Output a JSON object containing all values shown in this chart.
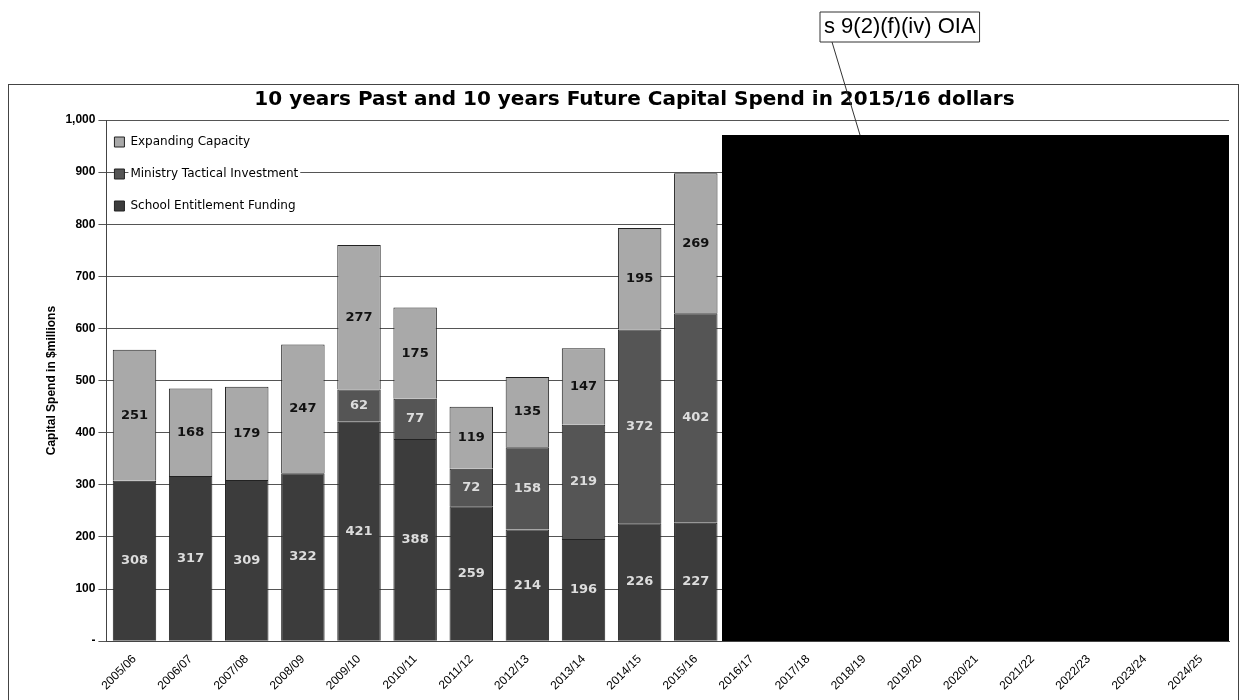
{
  "chart_data": {
    "type": "bar",
    "title": "10 years Past and 10 years Future Capital Spend in 2015/16 dollars",
    "ylabel": "Capital Spend in $millions",
    "categories": [
      "2005/06",
      "2006/07",
      "2007/08",
      "2008/09",
      "2009/10",
      "2010/11",
      "2011/12",
      "2012/13",
      "2013/14",
      "2014/15",
      "2015/16",
      "2016/17",
      "2017/18",
      "2018/19",
      "2019/20",
      "2020/21",
      "2021/22",
      "2022/23",
      "2023/24",
      "2024/25"
    ],
    "stacked": true,
    "series": [
      {
        "name": "School Entitlement Funding",
        "color": "#3c3c3c",
        "values": [
          308,
          317,
          309,
          322,
          421,
          388,
          259,
          214,
          196,
          226,
          227,
          null,
          null,
          null,
          null,
          null,
          null,
          null,
          null,
          null
        ]
      },
      {
        "name": "Ministry Tactical Investment",
        "color": "#555555",
        "values": [
          null,
          null,
          null,
          null,
          62,
          77,
          72,
          158,
          219,
          372,
          402,
          null,
          null,
          null,
          null,
          null,
          null,
          null,
          null,
          null
        ]
      },
      {
        "name": "Expanding Capacity",
        "color": "#a9a9a9",
        "values": [
          251,
          168,
          179,
          247,
          277,
          175,
          119,
          135,
          147,
          195,
          269,
          null,
          null,
          null,
          null,
          null,
          null,
          null,
          null,
          null
        ]
      }
    ],
    "ylim": [
      0,
      1000
    ],
    "yticks": [
      {
        "value": 0,
        "label": "-"
      },
      100,
      200,
      300,
      400,
      500,
      600,
      700,
      800,
      900,
      {
        "value": 1000,
        "label": "1,000"
      }
    ],
    "grid": "y",
    "legend": "top left",
    "data_labels": true,
    "annotations": [
      "s 9(2)(f)(iv) OIA"
    ]
  }
}
